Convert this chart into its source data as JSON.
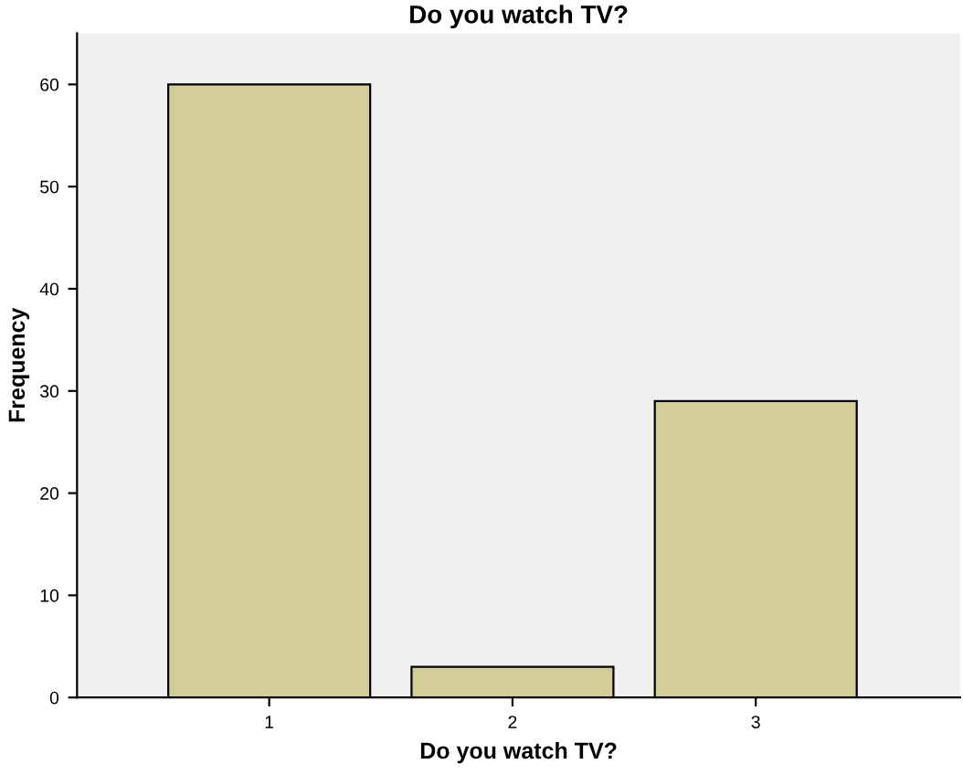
{
  "chart_data": {
    "type": "bar",
    "title": "Do you watch TV?",
    "xlabel": "Do you watch TV?",
    "ylabel": "Frequency",
    "categories": [
      "1",
      "2",
      "3"
    ],
    "values": [
      60,
      3,
      29
    ],
    "color": "#d3ce97",
    "ylim": [
      0,
      65
    ],
    "yticks": [
      0,
      10,
      20,
      30,
      40,
      50,
      60
    ],
    "grid": false,
    "legend": false
  }
}
